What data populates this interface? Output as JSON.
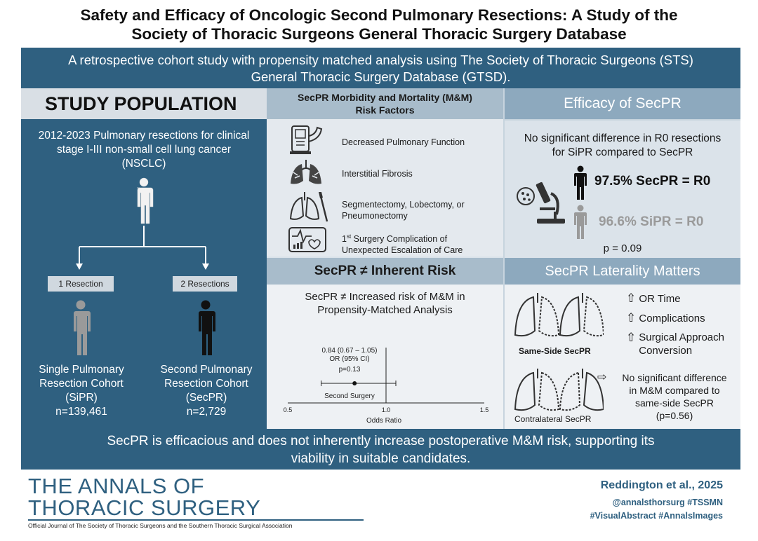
{
  "title": {
    "line1": "Safety and Efficacy of Oncologic Second Pulmonary Resections: A Study of the",
    "line2": "Society of Thoracic Surgeons General Thoracic Surgery Database"
  },
  "subtitle": {
    "line1": "A retrospective cohort study with propensity matched analysis using The Society of Thoracic Surgeons (STS)",
    "line2": "General Thoracic Surgery Database (GTSD)."
  },
  "study_population": {
    "header": "STUDY POPULATION",
    "description": "2012-2023 Pulmonary resections for clinical stage I-III non-small cell lung cancer (NSCLC)",
    "resection1_label": "1 Resection",
    "resection2_label": "2 Resections",
    "cohort1": {
      "line1": "Single Pulmonary",
      "line2": "Resection Cohort",
      "line3": "(SiPR)",
      "line4": "n=139,461"
    },
    "cohort2": {
      "line1": "Second Pulmonary",
      "line2": "Resection Cohort",
      "line3": "(SecPR)",
      "line4": "n=2,729"
    }
  },
  "risk_factors": {
    "header_line1": "SecPR Morbidity and Mortality (M&M)",
    "header_line2": "Risk Factors",
    "items": [
      {
        "icon": "spirometer-icon",
        "text_line1": "Decreased Pulmonary Function",
        "text_line2": ""
      },
      {
        "icon": "fibrotic-lungs-icon",
        "text_line1": "Interstitial Fibrosis",
        "text_line2": ""
      },
      {
        "icon": "lungs-scalpel-icon",
        "text_line1": "Segmentectomy, Lobectomy, or",
        "text_line2": "Pneumonectomy"
      },
      {
        "icon": "monitor-heart-icon",
        "text_line1_pre": "1",
        "text_line1_sup": "st",
        "text_line1_post": " Surgery Complication of",
        "text_line2": "Unexpected Escalation of Care"
      }
    ]
  },
  "inherent_risk": {
    "header": "SecPR ≠ Inherent Risk",
    "desc_line1": "SecPR ≠ Increased risk of M&M in",
    "desc_line2": "Propensity-Matched Analysis"
  },
  "chart_data": {
    "type": "scatter",
    "title": "",
    "xlabel": "Odds Ratio",
    "ylabel": "",
    "xlim": [
      0.5,
      1.5
    ],
    "x_ticks": [
      "0.5",
      "1.0",
      "1.5"
    ],
    "reference_line": 1.0,
    "series": [
      {
        "name": "Second Surgery",
        "or": 0.84,
        "ci_low": 0.67,
        "ci_high": 1.05
      }
    ],
    "annotation_line1": "0.84 (0.67 – 1.05)",
    "annotation_line2": "OR (95% CI)",
    "annotation_line3": "p=0.13",
    "row_label": "Second Surgery"
  },
  "efficacy": {
    "header": "Efficacy of SecPR",
    "desc_line1": "No significant difference in R0 resections",
    "desc_line2": "for SiPR compared to SecPR",
    "secpr_stat": "97.5% SecPR = R0",
    "sipr_stat": "96.6% SiPR = R0",
    "pvalue": "p = 0.09"
  },
  "laterality": {
    "header": "SecPR Laterality Matters",
    "same_side_label": "Same-Side SecPR",
    "contralateral_label": "Contralateral SecPR",
    "effects": [
      "OR Time",
      "Complications",
      "Surgical Approach Conversion"
    ],
    "contra_line1": "No significant difference",
    "contra_line2": "in M&M compared to",
    "contra_line3": "same-side SecPR",
    "contra_line4": "(p=0.56)"
  },
  "conclusion": {
    "line1": "SecPR is efficacious and does not inherently increase postoperative M&M risk, supporting its",
    "line2": "viability in suitable candidates."
  },
  "footer": {
    "journal_line1": "THE ANNALS OF",
    "journal_line2": "THORACIC SURGERY",
    "journal_sub": "Official Journal of The Society of Thoracic Surgeons and the Southern Thoracic Surgical Association",
    "authors": "Reddington et al., 2025",
    "handle": "@annalsthorsurg #TSSMN",
    "hashtags": "#VisualAbstract #AnnalsImages"
  },
  "colors": {
    "brand_blue": "#2f6080",
    "header_blue": "#8da9be",
    "mid_header": "#a8bccb",
    "grey_figure": "#9a9a9a"
  }
}
